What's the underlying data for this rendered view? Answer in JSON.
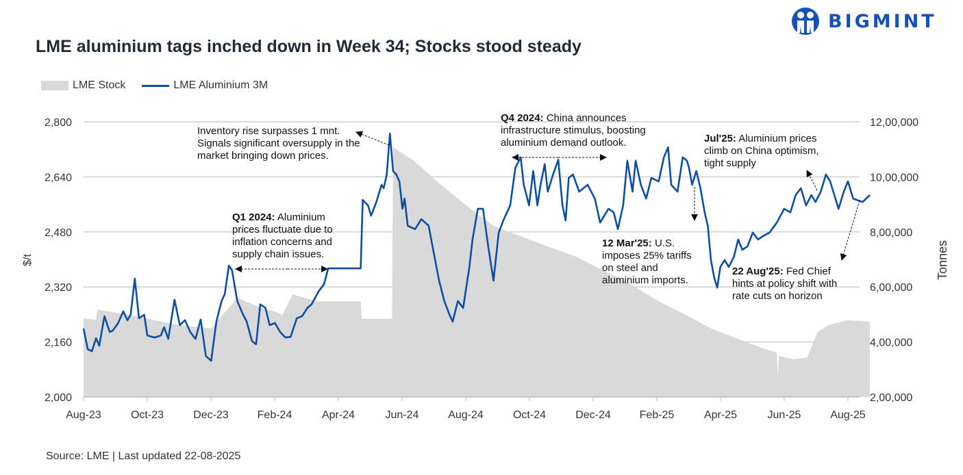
{
  "header": {
    "title": "LME aluminium tags inched down in Week 34; Stocks stood steady",
    "logo_text": "BIGMINT",
    "brand_color": "#1652b8"
  },
  "legend": {
    "stock": "LME Stock",
    "price": "LME Aluminium 3M"
  },
  "source": "Source: LME | Last updated 22-08-2025",
  "annotations": {
    "inventory": {
      "bold": "",
      "text": "Inventory rise surpasses 1 mnt. Signals significant oversupply in the market bringing down prices."
    },
    "q1": {
      "bold": "Q1 2024:",
      "text": " Aluminium prices fluctuate due to inflation concerns and supply chain issues."
    },
    "q4": {
      "bold": "Q4 2024:",
      "text": " China announces infrastructure stimulus, boosting aluminium demand outlook."
    },
    "mar25": {
      "bold": "12 Mar'25:",
      "text": " U.S. imposes 25% tariffs on steel and aluminium imports."
    },
    "jul25": {
      "bold": "Jul'25:",
      "text": " Aluminium prices climb on China optimism, tight supply"
    },
    "aug25": {
      "bold": "22 Aug'25:",
      "text": " Fed Chief hints at policy shift with rate cuts on horizon"
    }
  },
  "chart_data": {
    "type": "line+area",
    "title": "LME aluminium tags inched down in Week 34; Stocks stood steady",
    "ylabel": "$/t",
    "y2label": "Tonnes",
    "ylim": [
      2000,
      2800
    ],
    "y2lim": [
      200000,
      1200000
    ],
    "yticks": [
      "2,000",
      "2,160",
      "2,320",
      "2,480",
      "2,640",
      "2,800"
    ],
    "y2ticks": [
      "2,00,000",
      "4,00,000",
      "6,00,000",
      "8,00,000",
      "10,00,000",
      "12,00,000"
    ],
    "xticks": [
      "Aug-23",
      "Oct-23",
      "Dec-23",
      "Feb-24",
      "Apr-24",
      "Jun-24",
      "Aug-24",
      "Oct-24",
      "Dec-24",
      "Feb-25",
      "Apr-25",
      "Jun-25",
      "Aug-25"
    ],
    "grid": true,
    "legend_position": "top-left",
    "colors": {
      "price": "#0b4ea2",
      "stock": "#d9d9d9"
    },
    "series": [
      {
        "name": "LME Aluminium 3M",
        "axis": "left",
        "kind": "line",
        "points": [
          [
            "2023-08-01",
            2199
          ],
          [
            "2023-08-05",
            2139
          ],
          [
            "2023-08-09",
            2133
          ],
          [
            "2023-08-13",
            2171
          ],
          [
            "2023-08-16",
            2149
          ],
          [
            "2023-08-21",
            2235
          ],
          [
            "2023-08-26",
            2189
          ],
          [
            "2023-08-29",
            2193
          ],
          [
            "2023-09-03",
            2215
          ],
          [
            "2023-09-08",
            2249
          ],
          [
            "2023-09-12",
            2223
          ],
          [
            "2023-09-15",
            2239
          ],
          [
            "2023-09-19",
            2344
          ],
          [
            "2023-09-23",
            2229
          ],
          [
            "2023-09-28",
            2239
          ],
          [
            "2023-10-01",
            2179
          ],
          [
            "2023-10-08",
            2173
          ],
          [
            "2023-10-14",
            2179
          ],
          [
            "2023-10-17",
            2203
          ],
          [
            "2023-10-21",
            2169
          ],
          [
            "2023-10-27",
            2283
          ],
          [
            "2023-11-01",
            2209
          ],
          [
            "2023-11-06",
            2223
          ],
          [
            "2023-11-11",
            2189
          ],
          [
            "2023-11-16",
            2169
          ],
          [
            "2023-11-21",
            2225
          ],
          [
            "2023-11-26",
            2119
          ],
          [
            "2023-12-01",
            2105
          ],
          [
            "2023-12-06",
            2219
          ],
          [
            "2023-12-11",
            2279
          ],
          [
            "2023-12-14",
            2299
          ],
          [
            "2023-12-18",
            2382
          ],
          [
            "2023-12-21",
            2368
          ],
          [
            "2023-12-26",
            2279
          ],
          [
            "2023-12-31",
            2243
          ],
          [
            "2024-01-04",
            2219
          ],
          [
            "2024-01-09",
            2163
          ],
          [
            "2024-01-13",
            2153
          ],
          [
            "2024-01-17",
            2269
          ],
          [
            "2024-01-22",
            2259
          ],
          [
            "2024-01-26",
            2209
          ],
          [
            "2024-01-31",
            2215
          ],
          [
            "2024-02-05",
            2189
          ],
          [
            "2024-02-10",
            2173
          ],
          [
            "2024-02-15",
            2175
          ],
          [
            "2024-02-21",
            2229
          ],
          [
            "2024-02-26",
            2235
          ],
          [
            "2024-03-02",
            2259
          ],
          [
            "2024-03-06",
            2269
          ],
          [
            "2024-03-13",
            2308
          ],
          [
            "2024-03-18",
            2328
          ],
          [
            "2024-03-22",
            2374
          ],
          [
            "2024-04-22",
            2374
          ],
          [
            "2024-04-24",
            2573
          ],
          [
            "2024-04-29",
            2557
          ],
          [
            "2024-05-02",
            2527
          ],
          [
            "2024-05-07",
            2567
          ],
          [
            "2024-05-12",
            2617
          ],
          [
            "2024-05-14",
            2607
          ],
          [
            "2024-05-17",
            2647
          ],
          [
            "2024-05-20",
            2766
          ],
          [
            "2024-05-23",
            2657
          ],
          [
            "2024-05-26",
            2647
          ],
          [
            "2024-05-29",
            2627
          ],
          [
            "2024-06-01",
            2547
          ],
          [
            "2024-06-03",
            2577
          ],
          [
            "2024-06-06",
            2498
          ],
          [
            "2024-06-13",
            2488
          ],
          [
            "2024-06-19",
            2517
          ],
          [
            "2024-06-26",
            2498
          ],
          [
            "2024-07-01",
            2418
          ],
          [
            "2024-07-06",
            2338
          ],
          [
            "2024-07-11",
            2279
          ],
          [
            "2024-07-16",
            2239
          ],
          [
            "2024-07-19",
            2219
          ],
          [
            "2024-07-24",
            2279
          ],
          [
            "2024-07-29",
            2259
          ],
          [
            "2024-08-04",
            2378
          ],
          [
            "2024-08-07",
            2458
          ],
          [
            "2024-08-12",
            2547
          ],
          [
            "2024-08-17",
            2547
          ],
          [
            "2024-08-22",
            2438
          ],
          [
            "2024-08-27",
            2338
          ],
          [
            "2024-09-01",
            2478
          ],
          [
            "2024-09-06",
            2517
          ],
          [
            "2024-09-09",
            2537
          ],
          [
            "2024-09-12",
            2557
          ],
          [
            "2024-09-17",
            2667
          ],
          [
            "2024-09-22",
            2697
          ],
          [
            "2024-09-25",
            2617
          ],
          [
            "2024-09-30",
            2557
          ],
          [
            "2024-10-04",
            2657
          ],
          [
            "2024-10-08",
            2557
          ],
          [
            "2024-10-11",
            2617
          ],
          [
            "2024-10-15",
            2677
          ],
          [
            "2024-10-18",
            2597
          ],
          [
            "2024-10-23",
            2647
          ],
          [
            "2024-10-28",
            2690
          ],
          [
            "2024-11-01",
            2557
          ],
          [
            "2024-11-04",
            2513
          ],
          [
            "2024-11-07",
            2637
          ],
          [
            "2024-11-11",
            2647
          ],
          [
            "2024-11-17",
            2597
          ],
          [
            "2024-11-25",
            2617
          ],
          [
            "2024-12-02",
            2577
          ],
          [
            "2024-12-07",
            2507
          ],
          [
            "2024-12-15",
            2547
          ],
          [
            "2024-12-20",
            2537
          ],
          [
            "2024-12-24",
            2488
          ],
          [
            "2024-12-29",
            2557
          ],
          [
            "2025-01-02",
            2687
          ],
          [
            "2025-01-07",
            2597
          ],
          [
            "2025-01-10",
            2687
          ],
          [
            "2025-01-15",
            2617
          ],
          [
            "2025-01-20",
            2577
          ],
          [
            "2025-01-25",
            2637
          ],
          [
            "2025-02-01",
            2627
          ],
          [
            "2025-02-06",
            2697
          ],
          [
            "2025-02-10",
            2726
          ],
          [
            "2025-02-13",
            2617
          ],
          [
            "2025-02-19",
            2597
          ],
          [
            "2025-02-24",
            2697
          ],
          [
            "2025-02-28",
            2687
          ],
          [
            "2025-03-02",
            2667
          ],
          [
            "2025-03-05",
            2617
          ],
          [
            "2025-03-09",
            2657
          ],
          [
            "2025-03-13",
            2607
          ],
          [
            "2025-03-17",
            2537
          ],
          [
            "2025-03-20",
            2498
          ],
          [
            "2025-03-23",
            2398
          ],
          [
            "2025-03-26",
            2348
          ],
          [
            "2025-03-29",
            2318
          ],
          [
            "2025-04-01",
            2378
          ],
          [
            "2025-04-05",
            2398
          ],
          [
            "2025-04-09",
            2378
          ],
          [
            "2025-04-14",
            2408
          ],
          [
            "2025-04-18",
            2458
          ],
          [
            "2025-04-22",
            2428
          ],
          [
            "2025-04-27",
            2438
          ],
          [
            "2025-05-02",
            2478
          ],
          [
            "2025-05-07",
            2458
          ],
          [
            "2025-05-12",
            2468
          ],
          [
            "2025-05-18",
            2478
          ],
          [
            "2025-05-25",
            2507
          ],
          [
            "2025-06-01",
            2547
          ],
          [
            "2025-06-07",
            2537
          ],
          [
            "2025-06-12",
            2587
          ],
          [
            "2025-06-17",
            2607
          ],
          [
            "2025-06-22",
            2557
          ],
          [
            "2025-06-27",
            2587
          ],
          [
            "2025-07-01",
            2567
          ],
          [
            "2025-07-06",
            2597
          ],
          [
            "2025-07-11",
            2647
          ],
          [
            "2025-07-15",
            2627
          ],
          [
            "2025-07-20",
            2577
          ],
          [
            "2025-07-23",
            2547
          ],
          [
            "2025-07-28",
            2597
          ],
          [
            "2025-08-01",
            2627
          ],
          [
            "2025-08-06",
            2577
          ],
          [
            "2025-08-15",
            2567
          ],
          [
            "2025-08-22",
            2587
          ]
        ]
      },
      {
        "name": "LME Stock",
        "axis": "right",
        "kind": "area",
        "points": [
          [
            "2023-08-01",
            486000
          ],
          [
            "2023-08-13",
            480000
          ],
          [
            "2023-08-14",
            518000
          ],
          [
            "2023-09-21",
            493000
          ],
          [
            "2023-10-31",
            461000
          ],
          [
            "2023-12-01",
            449000
          ],
          [
            "2023-12-26",
            561000
          ],
          [
            "2024-01-18",
            523000
          ],
          [
            "2024-01-31",
            511000
          ],
          [
            "2024-02-07",
            498000
          ],
          [
            "2024-02-17",
            573000
          ],
          [
            "2024-03-11",
            548000
          ],
          [
            "2024-04-22",
            548000
          ],
          [
            "2024-04-23",
            484000
          ],
          [
            "2024-05-22",
            484000
          ],
          [
            "2024-05-23",
            1108000
          ],
          [
            "2024-06-12",
            1058000
          ],
          [
            "2024-07-08",
            971000
          ],
          [
            "2024-08-01",
            896000
          ],
          [
            "2024-08-27",
            822000
          ],
          [
            "2024-09-22",
            784000
          ],
          [
            "2024-10-18",
            747000
          ],
          [
            "2024-11-14",
            710000
          ],
          [
            "2024-12-10",
            660000
          ],
          [
            "2025-01-05",
            610000
          ],
          [
            "2025-02-01",
            548000
          ],
          [
            "2025-02-27",
            498000
          ],
          [
            "2025-03-23",
            449000
          ],
          [
            "2025-04-18",
            411000
          ],
          [
            "2025-05-14",
            374000
          ],
          [
            "2025-05-25",
            362000
          ],
          [
            "2025-05-26",
            275000
          ],
          [
            "2025-05-27",
            349000
          ],
          [
            "2025-06-10",
            337000
          ],
          [
            "2025-06-23",
            344000
          ],
          [
            "2025-07-03",
            436000
          ],
          [
            "2025-07-13",
            461000
          ],
          [
            "2025-08-01",
            479000
          ],
          [
            "2025-08-22",
            474000
          ]
        ]
      }
    ]
  }
}
